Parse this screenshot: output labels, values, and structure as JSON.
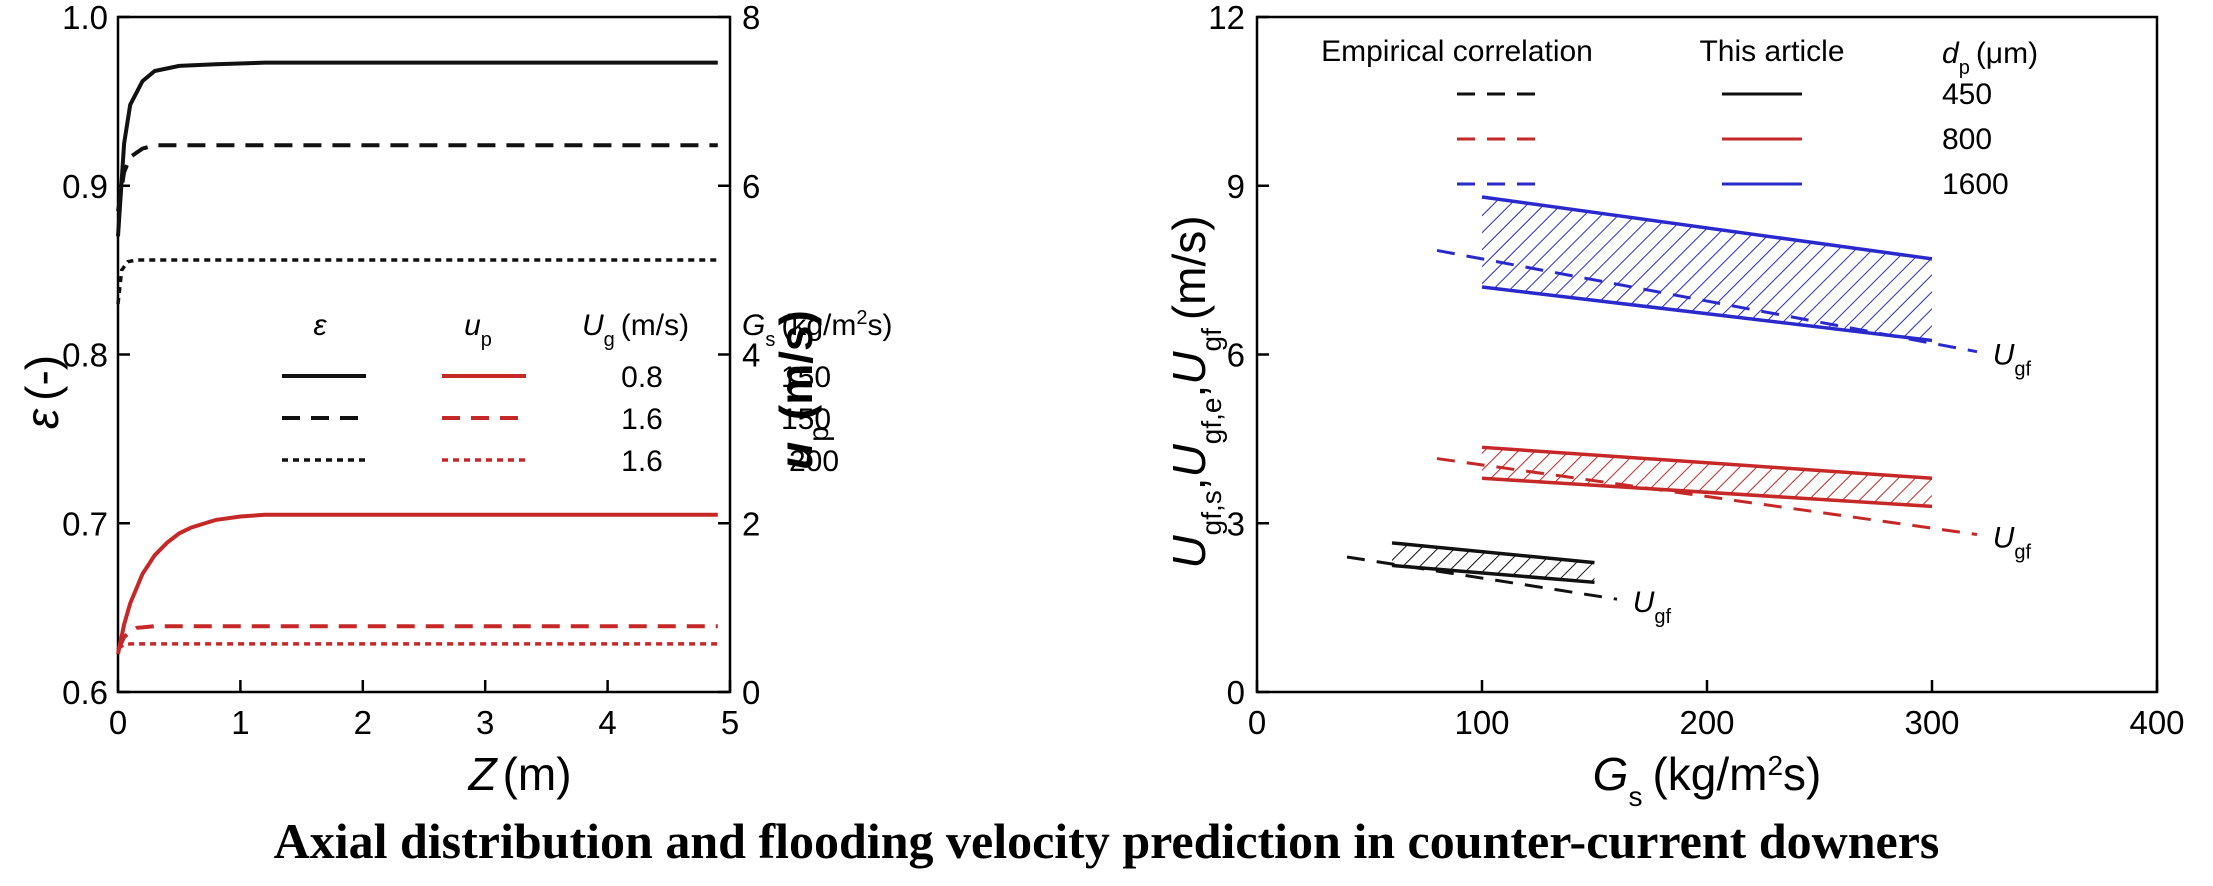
{
  "caption": "Axial distribution and flooding velocity prediction in counter-current downers",
  "colors": {
    "black": "#111111",
    "red": "#c62828",
    "blue": "#2a2acc"
  },
  "chart_data": [
    {
      "type": "line",
      "x_axis": {
        "label_main": "Z",
        "label_unit": "(m)",
        "range": [
          0,
          5
        ],
        "ticks": [
          0,
          1,
          2,
          3,
          4,
          5
        ]
      },
      "y_axis_left": {
        "label_main": "ε",
        "label_unit": "(-)",
        "range": [
          0.6,
          1.0
        ],
        "ticks": [
          0.6,
          0.7,
          0.8,
          0.9,
          1.0
        ],
        "tick_labels": [
          "0.6",
          "0.7",
          "0.8",
          "0.9",
          "1.0"
        ]
      },
      "y_axis_right": {
        "label_main": "u",
        "label_sub": "p",
        "label_unit": "(m/s)",
        "range": [
          0,
          8
        ],
        "ticks": [
          0,
          2,
          4,
          6,
          8
        ]
      },
      "legend": {
        "placement": "center",
        "col_eps": "ε",
        "col_up_main": "u",
        "col_up_sub": "p",
        "col_ug_main": "U",
        "col_ug_sub": "g",
        "col_ug_unit": "(m/s)",
        "col_gs_main": "G",
        "col_gs_sub": "s",
        "col_gs_unit_pre": "(kg/m",
        "col_gs_unit_sup": "2",
        "col_gs_unit_post": "s)",
        "rows": [
          {
            "style": "solid",
            "Ug": "0.8",
            "Gs": "150"
          },
          {
            "style": "dashed",
            "Ug": "1.6",
            "Gs": "150"
          },
          {
            "style": "dotted",
            "Ug": "1.6",
            "Gs": "200"
          }
        ]
      },
      "series": [
        {
          "quantity": "epsilon",
          "axis": "left",
          "style": "solid",
          "color": "black",
          "Ug": 0.8,
          "Gs": 150,
          "points": [
            [
              0,
              0.87
            ],
            [
              0.05,
              0.925
            ],
            [
              0.1,
              0.948
            ],
            [
              0.2,
              0.962
            ],
            [
              0.3,
              0.968
            ],
            [
              0.5,
              0.971
            ],
            [
              0.8,
              0.972
            ],
            [
              1.2,
              0.973
            ],
            [
              2,
              0.973
            ],
            [
              3,
              0.973
            ],
            [
              4,
              0.973
            ],
            [
              4.9,
              0.973
            ]
          ]
        },
        {
          "quantity": "epsilon",
          "axis": "left",
          "style": "dashed",
          "color": "black",
          "Ug": 1.6,
          "Gs": 150,
          "points": [
            [
              0,
              0.885
            ],
            [
              0.05,
              0.908
            ],
            [
              0.1,
              0.917
            ],
            [
              0.2,
              0.922
            ],
            [
              0.3,
              0.924
            ],
            [
              0.5,
              0.924
            ],
            [
              1,
              0.924
            ],
            [
              2,
              0.924
            ],
            [
              3,
              0.924
            ],
            [
              4,
              0.924
            ],
            [
              4.9,
              0.924
            ]
          ]
        },
        {
          "quantity": "epsilon",
          "axis": "left",
          "style": "dotted",
          "color": "black",
          "Ug": 1.6,
          "Gs": 200,
          "points": [
            [
              0,
              0.83
            ],
            [
              0.03,
              0.85
            ],
            [
              0.08,
              0.855
            ],
            [
              0.15,
              0.856
            ],
            [
              0.3,
              0.856
            ],
            [
              1,
              0.856
            ],
            [
              2,
              0.856
            ],
            [
              3,
              0.856
            ],
            [
              4,
              0.856
            ],
            [
              4.9,
              0.856
            ]
          ]
        },
        {
          "quantity": "u_p",
          "axis": "right",
          "style": "solid",
          "color": "red",
          "Ug": 0.8,
          "Gs": 150,
          "points": [
            [
              0,
              0.45
            ],
            [
              0.05,
              0.8
            ],
            [
              0.1,
              1.05
            ],
            [
              0.2,
              1.4
            ],
            [
              0.3,
              1.62
            ],
            [
              0.4,
              1.77
            ],
            [
              0.5,
              1.88
            ],
            [
              0.6,
              1.95
            ],
            [
              0.8,
              2.04
            ],
            [
              1,
              2.08
            ],
            [
              1.2,
              2.1
            ],
            [
              2,
              2.1
            ],
            [
              3,
              2.1
            ],
            [
              4,
              2.1
            ],
            [
              4.9,
              2.1
            ]
          ]
        },
        {
          "quantity": "u_p",
          "axis": "right",
          "style": "dashed",
          "color": "red",
          "Ug": 1.6,
          "Gs": 150,
          "points": [
            [
              0,
              0.5
            ],
            [
              0.05,
              0.65
            ],
            [
              0.1,
              0.72
            ],
            [
              0.15,
              0.76
            ],
            [
              0.3,
              0.78
            ],
            [
              1,
              0.78
            ],
            [
              2,
              0.78
            ],
            [
              3,
              0.78
            ],
            [
              4,
              0.78
            ],
            [
              4.9,
              0.78
            ]
          ]
        },
        {
          "quantity": "u_p",
          "axis": "right",
          "style": "dotted",
          "color": "red",
          "Ug": 1.6,
          "Gs": 200,
          "points": [
            [
              0,
              0.52
            ],
            [
              0.05,
              0.56
            ],
            [
              0.1,
              0.57
            ],
            [
              0.3,
              0.57
            ],
            [
              1,
              0.57
            ],
            [
              2,
              0.57
            ],
            [
              3,
              0.57
            ],
            [
              4,
              0.57
            ],
            [
              4.9,
              0.57
            ]
          ]
        }
      ]
    },
    {
      "type": "line",
      "x_axis": {
        "label_main": "G",
        "label_sub": "s",
        "label_unit_pre": "(kg/m",
        "label_unit_sup": "2",
        "label_unit_post": "s)",
        "range": [
          0,
          400
        ],
        "ticks": [
          0,
          100,
          200,
          300,
          400
        ]
      },
      "y_axis": {
        "label_parts": [
          {
            "main": "U",
            "sub": "gf,s"
          },
          {
            "main": ","
          },
          {
            "main": "U",
            "sub": "gf,e"
          },
          {
            "main": ","
          },
          {
            "main": "U",
            "sub": "gf"
          },
          {
            "main": "(m/s)"
          }
        ],
        "range": [
          0,
          12
        ],
        "ticks": [
          0,
          3,
          6,
          9,
          12
        ]
      },
      "legend": {
        "placement": "top",
        "header_empirical": "Empirical correlation",
        "header_article": "This article",
        "header_dp_main": "d",
        "header_dp_sub": "p",
        "header_dp_unit": "(μm)",
        "rows": [
          {
            "color": "black",
            "dp": "450"
          },
          {
            "color": "red",
            "dp": "800"
          },
          {
            "color": "blue",
            "dp": "1600"
          }
        ]
      },
      "bands": [
        {
          "dp": 450,
          "color": "black",
          "x": [
            60,
            150
          ],
          "upper": [
            2.65,
            2.3
          ],
          "lower": [
            2.25,
            1.95
          ]
        },
        {
          "dp": 800,
          "color": "red",
          "x": [
            100,
            300
          ],
          "upper": [
            4.35,
            3.8
          ],
          "lower": [
            3.8,
            3.3
          ]
        },
        {
          "dp": 1600,
          "color": "blue",
          "x": [
            100,
            300
          ],
          "upper": [
            8.8,
            7.7
          ],
          "lower": [
            7.2,
            6.25
          ]
        }
      ],
      "empirical": [
        {
          "dp": 450,
          "color": "black",
          "x": [
            40,
            160
          ],
          "y": [
            2.4,
            1.65
          ]
        },
        {
          "dp": 800,
          "color": "red",
          "x": [
            80,
            320
          ],
          "y": [
            4.15,
            2.8
          ]
        },
        {
          "dp": 1600,
          "color": "blue",
          "x": [
            80,
            320
          ],
          "y": [
            7.85,
            6.05
          ]
        }
      ],
      "annotations": [
        {
          "main": "U",
          "sub": "gf",
          "x": 167,
          "y": 1.6
        },
        {
          "main": "U",
          "sub": "gf",
          "x": 327,
          "y": 2.75
        },
        {
          "main": "U",
          "sub": "gf",
          "x": 327,
          "y": 6.0
        }
      ]
    }
  ]
}
